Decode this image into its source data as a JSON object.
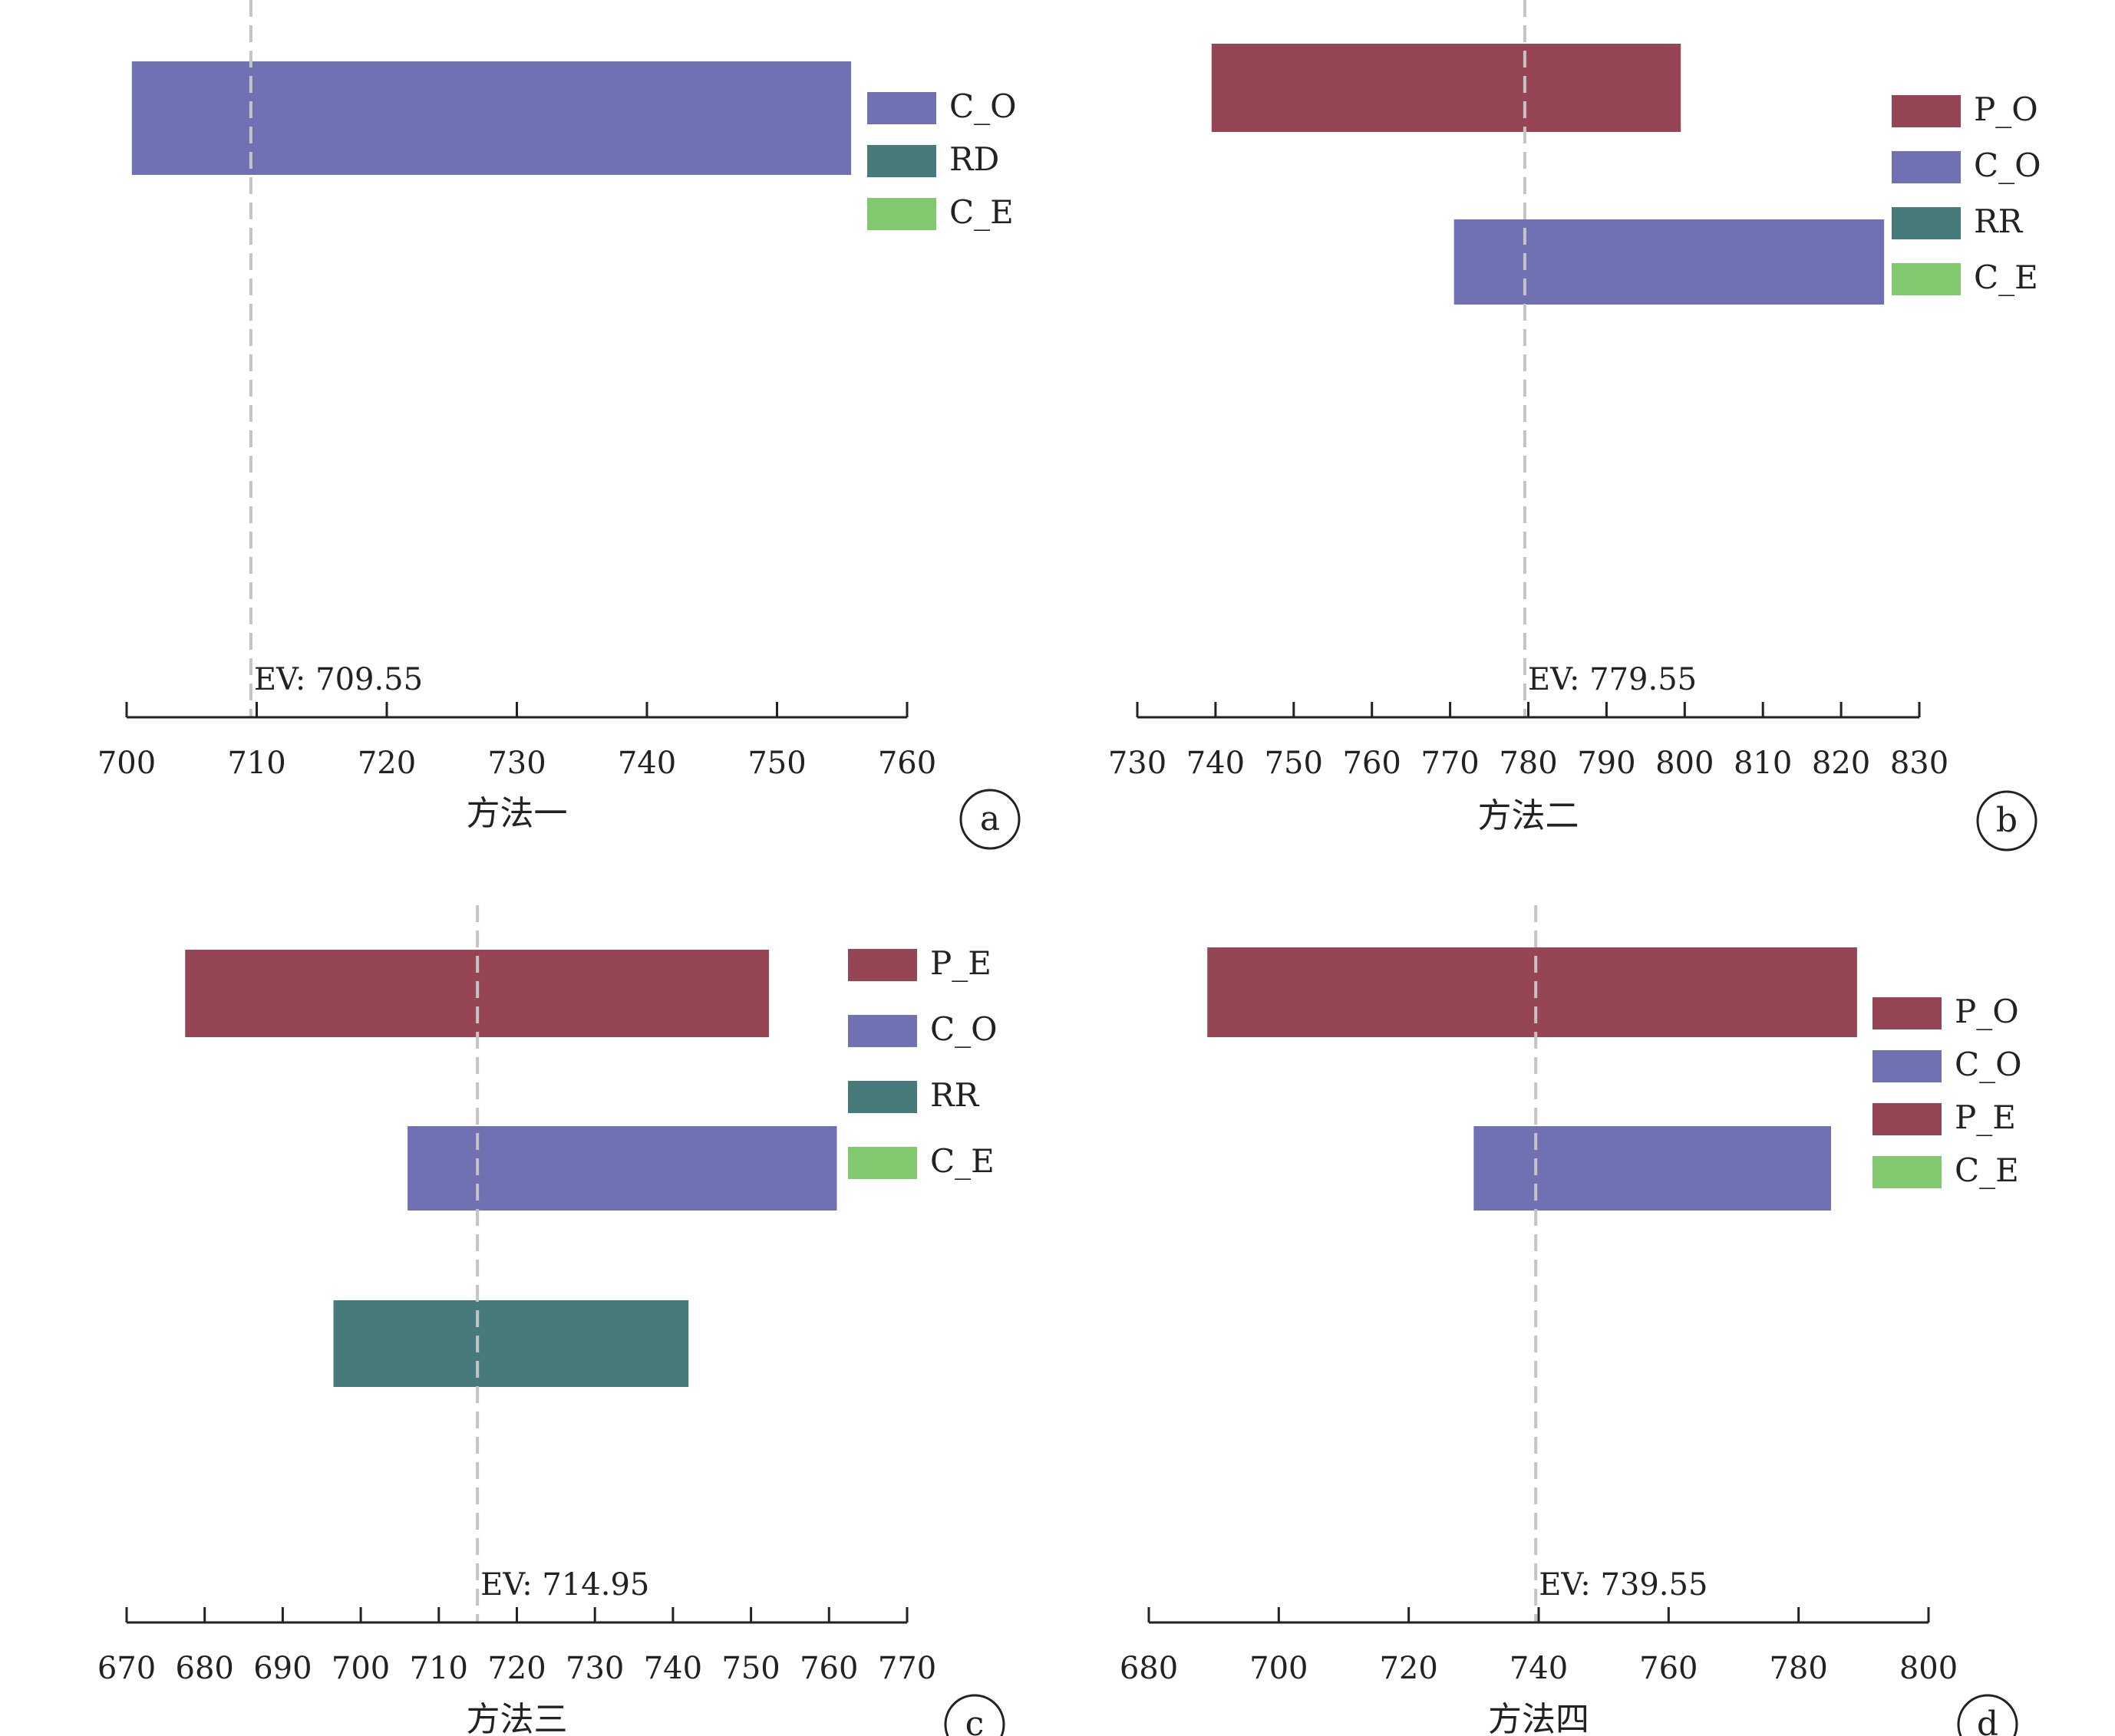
{
  "colors": {
    "P_O": "#954554",
    "P_E": "#954554",
    "C_O": "#6f71b2",
    "RD": "#477a7a",
    "RR": "#477a7a",
    "C_E": "#82c86e",
    "axis": "#222222",
    "ev_line": "#c4c4c4"
  },
  "chart_data": [
    {
      "type": "bar",
      "orientation": "horizontal",
      "panel_label": "a",
      "xlabel": "方法一",
      "xlim": [
        700,
        760
      ],
      "xticks": [
        700,
        710,
        720,
        730,
        740,
        750,
        760
      ],
      "ev": 709.55,
      "ev_label": "EV: 709.55",
      "bars": [
        {
          "series": "C_O",
          "start": 700.4,
          "end": 755.7
        }
      ],
      "legend": [
        "C_O",
        "RD",
        "C_E"
      ],
      "legend_position": "top-right"
    },
    {
      "type": "bar",
      "orientation": "horizontal",
      "panel_label": "b",
      "xlabel": "方法二",
      "xlim": [
        730,
        830
      ],
      "xticks": [
        730,
        740,
        750,
        760,
        770,
        780,
        790,
        800,
        810,
        820,
        830
      ],
      "ev": 779.55,
      "ev_label": "EV: 779.55",
      "bars": [
        {
          "series": "P_O",
          "start": 739.5,
          "end": 799.5
        },
        {
          "series": "C_O",
          "start": 770.5,
          "end": 825.5
        }
      ],
      "legend": [
        "P_O",
        "C_O",
        "RR",
        "C_E"
      ],
      "legend_position": "top-right"
    },
    {
      "type": "bar",
      "orientation": "horizontal",
      "panel_label": "c",
      "xlabel": "方法三",
      "xlim": [
        670,
        770
      ],
      "xticks": [
        670,
        680,
        690,
        700,
        710,
        720,
        730,
        740,
        750,
        760,
        770
      ],
      "ev": 714.95,
      "ev_label": "EV: 714.95",
      "bars": [
        {
          "series": "P_E",
          "start": 677.5,
          "end": 752.3
        },
        {
          "series": "C_O",
          "start": 706,
          "end": 761
        },
        {
          "series": "RR",
          "start": 696.5,
          "end": 742
        }
      ],
      "legend": [
        "P_E",
        "C_O",
        "RR",
        "C_E"
      ],
      "legend_position": "top-right"
    },
    {
      "type": "bar",
      "orientation": "horizontal",
      "panel_label": "d",
      "xlabel": "方法四",
      "xlim": [
        680,
        800
      ],
      "xticks": [
        680,
        700,
        720,
        740,
        760,
        780,
        800
      ],
      "ev": 739.55,
      "ev_label": "EV: 739.55",
      "bars": [
        {
          "series": "P_O",
          "start": 689,
          "end": 789
        },
        {
          "series": "C_O",
          "start": 730,
          "end": 785
        }
      ],
      "legend": [
        "P_O",
        "C_O",
        "P_E",
        "C_E"
      ],
      "legend_position": "top-right"
    }
  ]
}
